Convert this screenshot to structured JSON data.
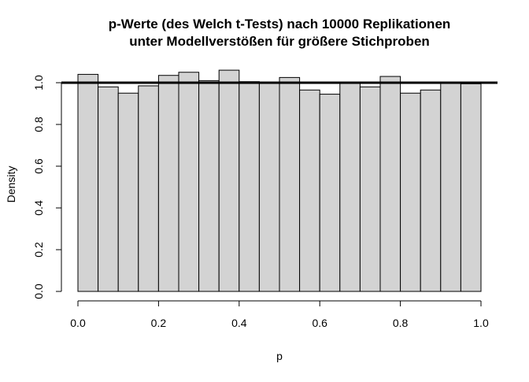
{
  "chart_data": {
    "type": "bar",
    "title_line1": "p-Werte (des Welch t-Tests) nach 10000 Replikationen",
    "title_line2": "unter Modellverstößen für größere Stichproben",
    "xlabel": "p",
    "ylabel": "Density",
    "xlim": [
      0,
      1
    ],
    "ylim": [
      0,
      1.06
    ],
    "x_ticks": [
      "0.0",
      "0.2",
      "0.4",
      "0.6",
      "0.8",
      "1.0"
    ],
    "x_tick_values": [
      0,
      0.2,
      0.4,
      0.6,
      0.8,
      1.0
    ],
    "y_ticks": [
      "0.0",
      "0.2",
      "0.4",
      "0.6",
      "0.8",
      "1.0"
    ],
    "y_tick_values": [
      0,
      0.2,
      0.4,
      0.6,
      0.8,
      1.0
    ],
    "bin_width": 0.05,
    "bin_starts": [
      0.0,
      0.05,
      0.1,
      0.15,
      0.2,
      0.25,
      0.3,
      0.35,
      0.4,
      0.45,
      0.5,
      0.55,
      0.6,
      0.65,
      0.7,
      0.75,
      0.8,
      0.85,
      0.9,
      0.95
    ],
    "values": [
      1.04,
      0.98,
      0.95,
      0.985,
      1.035,
      1.05,
      1.01,
      1.06,
      1.005,
      1.0,
      1.025,
      0.965,
      0.945,
      1.0,
      0.98,
      1.03,
      0.95,
      0.965,
      1.0,
      0.995
    ],
    "reference_line": 1.0,
    "colors": {
      "bar_fill": "#d3d3d3",
      "bar_stroke": "#000000",
      "reference_line": "#000000"
    },
    "grid": false
  }
}
